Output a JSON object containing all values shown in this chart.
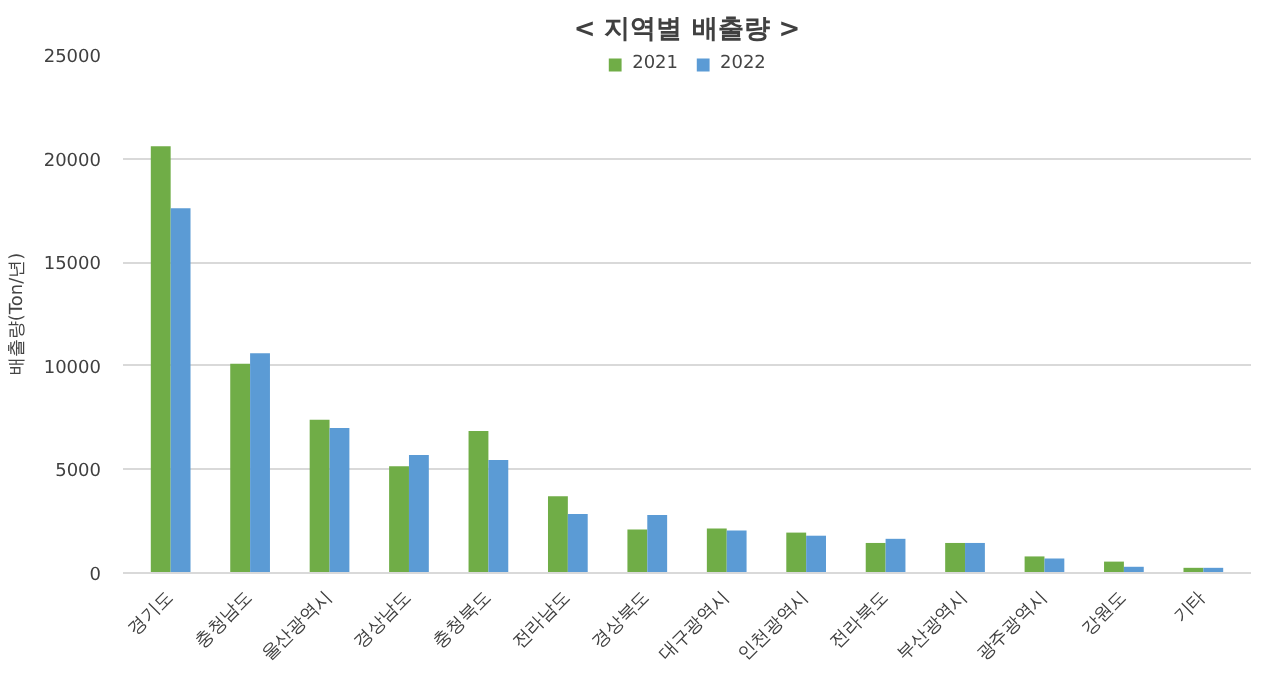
{
  "chart_data": {
    "type": "bar",
    "title": "< 지역별 배출량 >",
    "ylabel": "배출량(Ton/년)",
    "categories": [
      "경기도",
      "충청남도",
      "울산광역시",
      "경상남도",
      "충청북도",
      "전라남도",
      "경상북도",
      "대구광역시",
      "인천광역시",
      "전라북도",
      "부산광역시",
      "광주광역시",
      "강원도",
      "기타"
    ],
    "series": [
      {
        "name": "2021",
        "color": "#70ad47",
        "values": [
          20600,
          10100,
          7400,
          5150,
          6850,
          3700,
          2100,
          2150,
          1950,
          1450,
          1450,
          800,
          550,
          250
        ]
      },
      {
        "name": "2022",
        "color": "#5b9bd5",
        "values": [
          17600,
          10600,
          7000,
          5700,
          5450,
          2850,
          2800,
          2050,
          1800,
          1650,
          1450,
          700,
          300,
          250
        ]
      }
    ],
    "ylim": [
      0,
      25000
    ],
    "yticks": [
      0,
      5000,
      10000,
      15000,
      20000,
      25000
    ],
    "grid": "y",
    "legend": "top"
  }
}
